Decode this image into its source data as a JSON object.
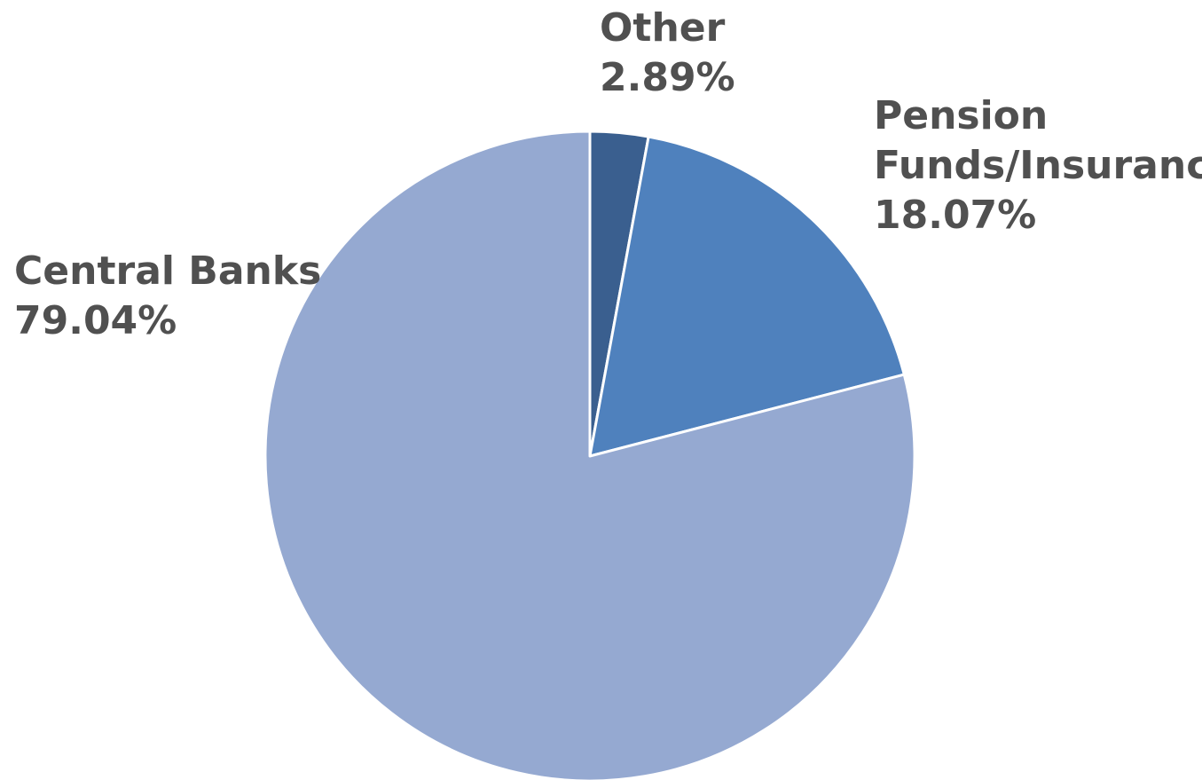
{
  "chart_data": {
    "type": "pie",
    "categories": [
      "Other",
      "Pension Funds/Insurance",
      "Central Banks"
    ],
    "values": [
      2.89,
      18.07,
      79.04
    ],
    "unit": "%",
    "slices": [
      {
        "name": "Other",
        "value": 2.89,
        "label_lines": [
          "Other",
          "2.89%"
        ],
        "color": "#3A5F8F"
      },
      {
        "name": "Pension Funds/Insurance",
        "value": 18.07,
        "label_lines": [
          "Pension",
          "Funds/Insurance",
          "18.07%"
        ],
        "color": "#4F81BD"
      },
      {
        "name": "Central Banks",
        "value": 79.04,
        "label_lines": [
          "Central Banks",
          "79.04%"
        ],
        "color": "#95A9D1"
      }
    ],
    "start_angle": "12 o'clock",
    "direction": "clockwise",
    "title": "",
    "legend": "none"
  },
  "colors": {
    "label_text": "#505050",
    "slice_border": "#ffffff"
  }
}
